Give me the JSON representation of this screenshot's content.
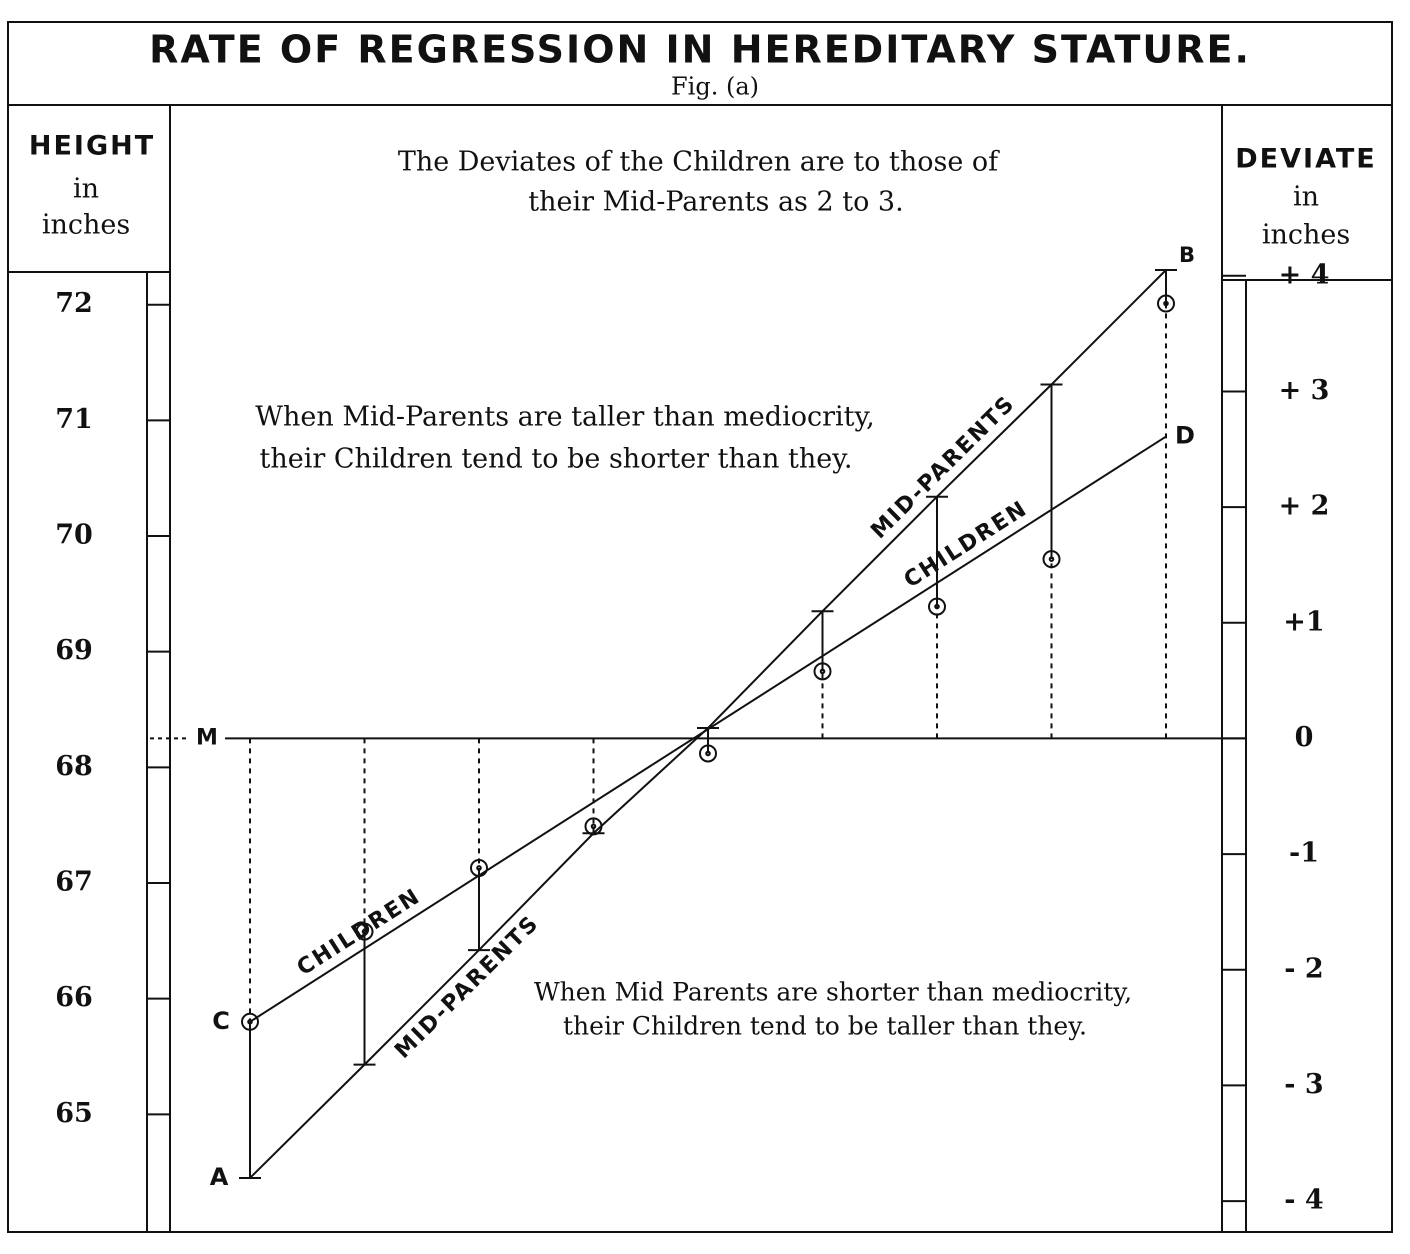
{
  "chart_data": {
    "type": "line",
    "title": "RATE OF REGRESSION IN HEREDITARY STATURE.",
    "subtitle": "Fig. (a)",
    "y_label": [
      "HEIGHT",
      "in",
      "inches"
    ],
    "y2_label": [
      "DEVIATE",
      "in",
      "inches"
    ],
    "annotations": [
      [
        "The Deviates of the Children are to those of",
        "their Mid-Parents as 2 to 3."
      ],
      [
        "When Mid-Parents are taller than mediocrity,",
        "their Children tend to be shorter than they."
      ],
      [
        "When Mid Parents are shorter than mediocrity,",
        "their Children tend to be taller than they."
      ]
    ],
    "categories": [
      null,
      null,
      null,
      null,
      null,
      null,
      null,
      null,
      null
    ],
    "series": [
      {
        "name": "MID-PARENTS",
        "color": "#111111",
        "values": [
          64.45,
          65.43,
          66.42,
          67.43,
          68.34,
          69.35,
          70.34,
          71.31,
          72.3
        ]
      },
      {
        "name": "CHILDREN",
        "color": "#111111",
        "values": [
          65.8,
          66.58,
          67.13,
          67.49,
          68.12,
          68.83,
          69.39,
          69.8,
          72.01
        ]
      }
    ],
    "children_line": [
      65.8,
      70.86
    ],
    "line_labels": [
      "MID-PARENTS",
      "CHILDREN",
      "CHILDREN",
      "MID-PARENTS"
    ],
    "point_labels": [
      "A",
      "B",
      "C",
      "D"
    ],
    "mediocrity": 68.25,
    "mediocrity_label": "M",
    "ylim": [
      64,
      72.3
    ],
    "yticks": [
      65,
      66,
      67,
      68,
      69,
      70,
      71,
      72
    ],
    "y2lim": [
      -4.25,
      4.05
    ],
    "y2ticks": [
      {
        "value": -4,
        "label": "- 4"
      },
      {
        "value": -3,
        "label": "- 3"
      },
      {
        "value": -2,
        "label": "- 2"
      },
      -1,
      0,
      {
        "value": 1,
        "label": "+1"
      },
      {
        "value": 2,
        "label": "+ 2"
      },
      {
        "value": 3,
        "label": "+ 3"
      },
      {
        "value": 4,
        "label": "+ 4"
      }
    ]
  }
}
